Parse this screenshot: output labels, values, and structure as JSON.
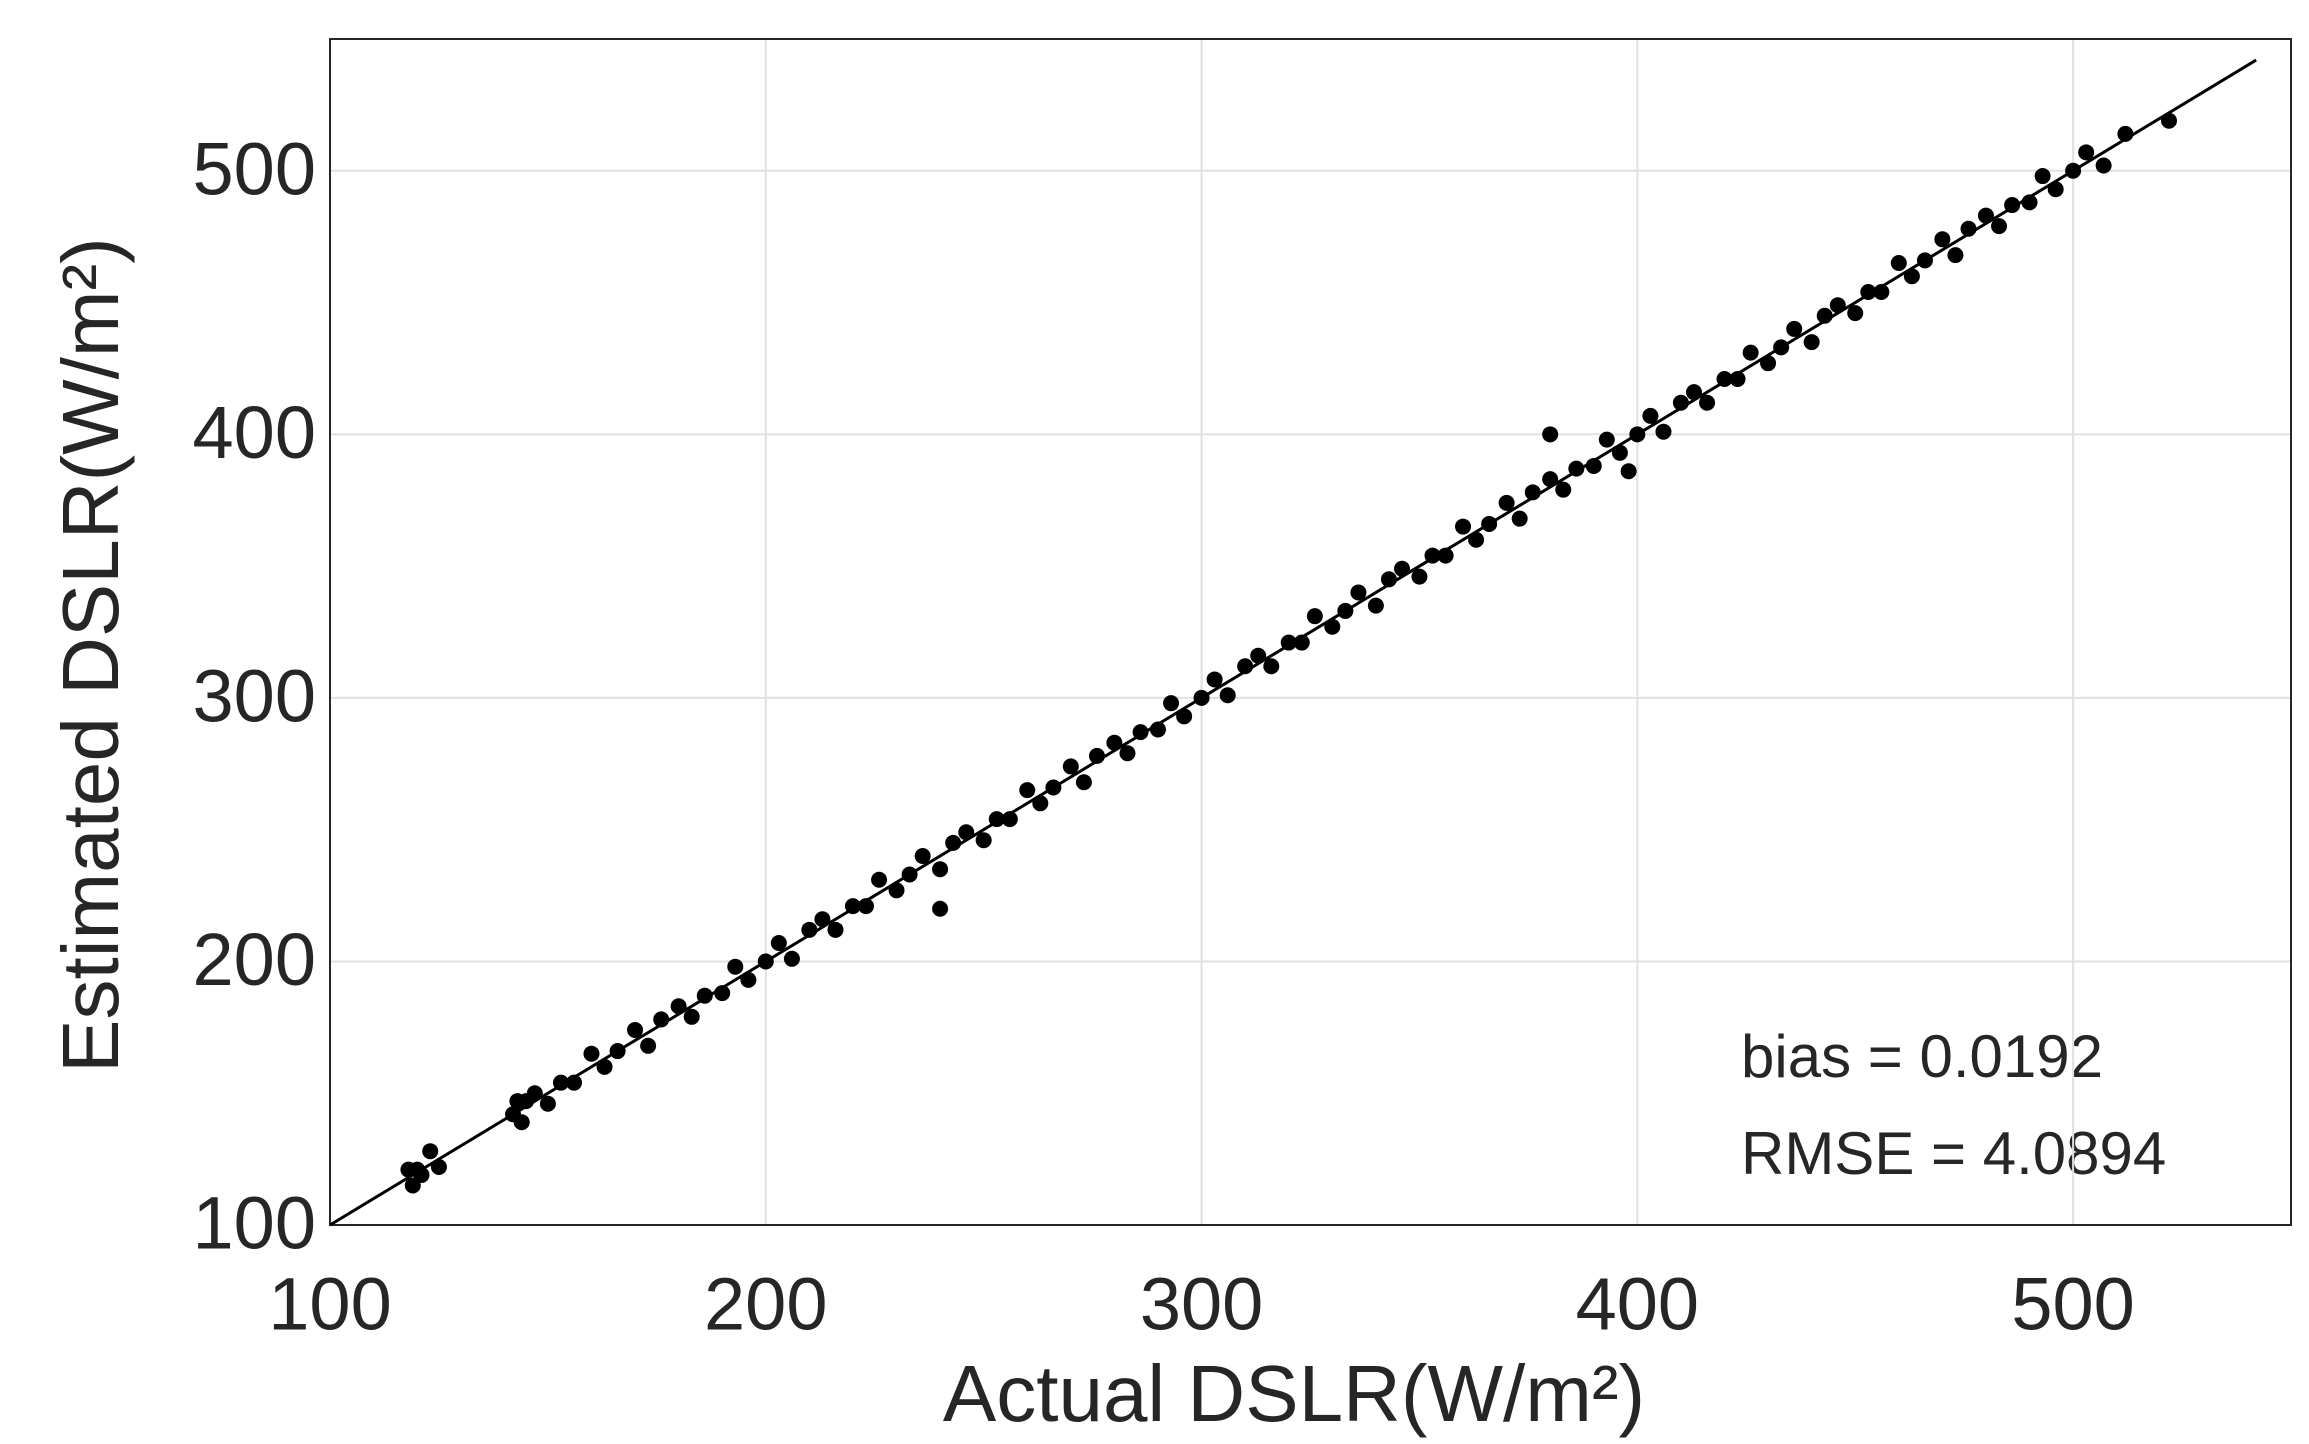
{
  "chart_data": {
    "type": "scatter",
    "xlabel": "Actual DSLR(W/m²)",
    "ylabel": "Estimated DSLR(W/m²)",
    "annotations": [
      "bias = 0.0192",
      "RMSE = 4.0894"
    ],
    "xlim": [
      100,
      550
    ],
    "ylim": [
      100,
      550
    ],
    "xticks": [
      100,
      200,
      300,
      400,
      500
    ],
    "yticks": [
      100,
      200,
      300,
      400,
      500
    ],
    "grid": true,
    "color": "#000000",
    "reference_line": {
      "x": [
        100,
        542
      ],
      "y": [
        100,
        542
      ]
    },
    "x": [
      118,
      119,
      120,
      121,
      123,
      125,
      142,
      143,
      144,
      145,
      147,
      150,
      153,
      156,
      160,
      163,
      166,
      170,
      173,
      176,
      180,
      183,
      186,
      190,
      193,
      196,
      200,
      203,
      206,
      210,
      213,
      216,
      220,
      223,
      226,
      230,
      233,
      236,
      240,
      243,
      246,
      250,
      253,
      256,
      260,
      263,
      266,
      270,
      273,
      276,
      280,
      283,
      286,
      290,
      293,
      296,
      300,
      303,
      306,
      310,
      313,
      316,
      320,
      323,
      326,
      330,
      333,
      336,
      340,
      343,
      346,
      350,
      353,
      356,
      360,
      363,
      366,
      370,
      373,
      376,
      380,
      383,
      386,
      390,
      393,
      396,
      400,
      403,
      406,
      410,
      413,
      416,
      420,
      423,
      426,
      430,
      433,
      436,
      440,
      443,
      446,
      450,
      453,
      456,
      460,
      463,
      466,
      470,
      473,
      476,
      480,
      483,
      486,
      490,
      493,
      496,
      500,
      503,
      507,
      512,
      522,
      240,
      380,
      398
    ],
    "y": [
      121,
      115,
      121,
      119,
      128,
      122,
      142,
      147,
      139,
      147,
      150,
      146,
      154,
      154,
      165,
      160,
      166,
      174,
      168,
      178,
      183,
      179,
      187,
      188,
      198,
      193,
      200,
      207,
      201,
      212,
      216,
      212,
      221,
      221,
      231,
      227,
      233,
      240,
      235,
      245,
      249,
      246,
      254,
      254,
      265,
      260,
      266,
      274,
      268,
      278,
      283,
      279,
      287,
      288,
      298,
      293,
      300,
      307,
      301,
      312,
      316,
      312,
      321,
      321,
      331,
      327,
      333,
      340,
      335,
      345,
      349,
      346,
      354,
      354,
      365,
      360,
      366,
      374,
      368,
      378,
      383,
      379,
      387,
      388,
      398,
      393,
      400,
      407,
      401,
      412,
      416,
      412,
      421,
      421,
      431,
      427,
      433,
      440,
      435,
      445,
      449,
      446,
      454,
      454,
      465,
      460,
      466,
      474,
      468,
      478,
      483,
      479,
      487,
      488,
      498,
      493,
      500,
      507,
      502,
      514,
      519,
      220,
      400,
      386
    ]
  }
}
